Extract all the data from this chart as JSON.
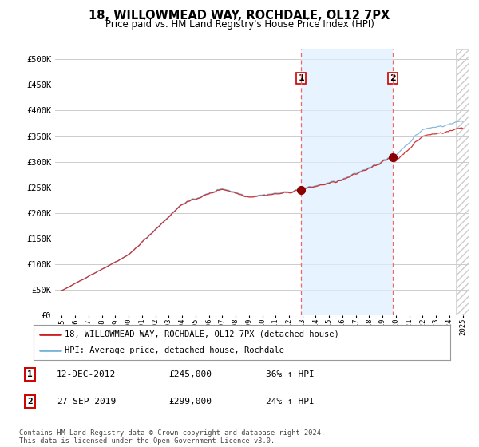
{
  "title": "18, WILLOWMEAD WAY, ROCHDALE, OL12 7PX",
  "subtitle": "Price paid vs. HM Land Registry's House Price Index (HPI)",
  "legend_line1": "18, WILLOWMEAD WAY, ROCHDALE, OL12 7PX (detached house)",
  "legend_line2": "HPI: Average price, detached house, Rochdale",
  "footnote": "Contains HM Land Registry data © Crown copyright and database right 2024.\nThis data is licensed under the Open Government Licence v3.0.",
  "transaction1_label": "1",
  "transaction1_date": "12-DEC-2012",
  "transaction1_price": "£245,000",
  "transaction1_hpi": "36% ↑ HPI",
  "transaction2_label": "2",
  "transaction2_date": "27-SEP-2019",
  "transaction2_price": "£299,000",
  "transaction2_hpi": "24% ↑ HPI",
  "hpi_line_color": "#7ab4d8",
  "price_line_color": "#cc2222",
  "marker_color": "#8b0000",
  "vline_color": "#ee6666",
  "highlight_color": "#ddeeff",
  "ylim_min": 0,
  "ylim_max": 520000,
  "xlim_min": 1994.5,
  "xlim_max": 2025.5,
  "sale1_year": 2012.917,
  "sale1_price": 245000,
  "sale2_year": 2019.75,
  "sale2_price": 299000,
  "background_color": "#ffffff",
  "grid_color": "#cccccc",
  "hatch_color": "#cccccc"
}
